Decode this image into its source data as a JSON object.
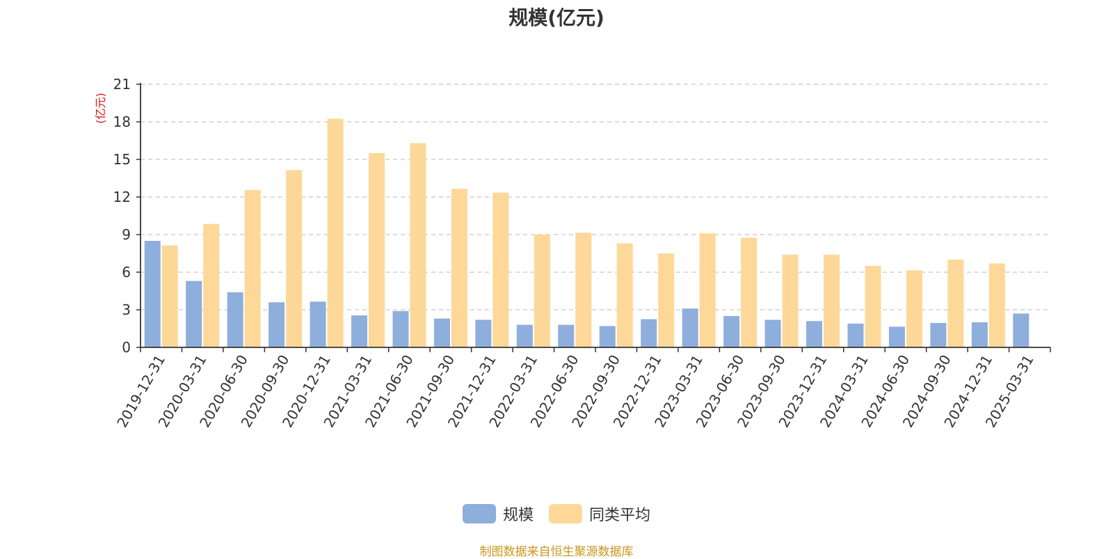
{
  "chart_data": {
    "type": "bar",
    "title": "规模(亿元)",
    "ylabel": "(亿元)",
    "xlabel": "",
    "ylim": [
      0,
      21
    ],
    "yticks": [
      0,
      3,
      6,
      9,
      12,
      15,
      18,
      21
    ],
    "grid": true,
    "legend_position": "bottom",
    "categories": [
      "2019-12-31",
      "2020-03-31",
      "2020-06-30",
      "2020-09-30",
      "2020-12-31",
      "2021-03-31",
      "2021-06-30",
      "2021-09-30",
      "2021-12-31",
      "2022-03-31",
      "2022-06-30",
      "2022-09-30",
      "2022-12-31",
      "2023-03-31",
      "2023-06-30",
      "2023-09-30",
      "2023-12-31",
      "2024-03-31",
      "2024-06-30",
      "2024-09-30",
      "2024-12-31",
      "2025-03-31"
    ],
    "series": [
      {
        "name": "规模",
        "color": "#8eaedc",
        "values": [
          8.5,
          5.3,
          4.4,
          3.6,
          3.65,
          2.55,
          2.9,
          2.3,
          2.2,
          1.8,
          1.8,
          1.7,
          2.25,
          3.1,
          2.5,
          2.2,
          2.1,
          1.9,
          1.65,
          1.95,
          2.0,
          2.7
        ]
      },
      {
        "name": "同类平均",
        "color": "#fdd898",
        "values": [
          8.15,
          9.85,
          12.55,
          14.15,
          18.25,
          15.5,
          16.3,
          12.65,
          12.35,
          9.0,
          9.15,
          8.3,
          7.5,
          9.1,
          8.75,
          7.4,
          7.4,
          6.5,
          6.15,
          7.0,
          6.7,
          null
        ]
      }
    ]
  },
  "source_note": "制图数据来自恒生聚源数据库"
}
